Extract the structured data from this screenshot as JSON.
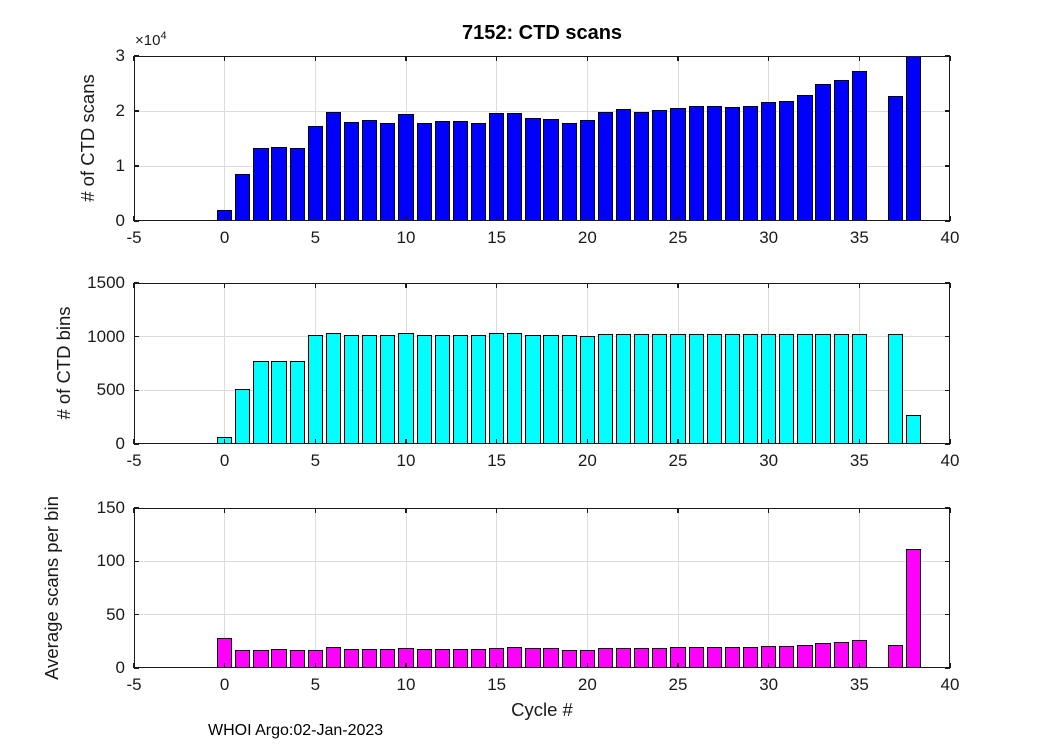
{
  "figure": {
    "footer": "WHOI Argo:02-Jan-2023"
  },
  "colors": {
    "background": "#ffffff",
    "axis": "#1a1a1a",
    "grid": "#dcdcdc",
    "tick_text": "#1a1a1a",
    "scans_bar": "#0000ff",
    "bins_bar": "#00ffff",
    "avg_bar": "#ff00ff",
    "bar_edge": "#000000"
  },
  "chart_data": [
    {
      "type": "bar",
      "title": "7152: CTD scans",
      "ylabel": "# of CTD scans",
      "y_scale_label": "×10",
      "y_scale_exponent": "4",
      "xlim": [
        -5,
        40
      ],
      "ylim": [
        0,
        30000
      ],
      "xticks": [
        -5,
        0,
        5,
        10,
        15,
        20,
        25,
        30,
        35,
        40
      ],
      "xtick_labels": [
        "-5",
        "0",
        "5",
        "10",
        "15",
        "20",
        "25",
        "30",
        "35",
        "40"
      ],
      "yticks": [
        0,
        10000,
        20000,
        30000
      ],
      "ytick_labels": [
        "0",
        "1",
        "2",
        "3"
      ],
      "grid": true,
      "bar_color": "#0000ff",
      "bar_width_units": 0.84,
      "x": [
        0,
        1,
        2,
        3,
        4,
        5,
        6,
        7,
        8,
        9,
        10,
        11,
        12,
        13,
        14,
        15,
        16,
        17,
        18,
        19,
        20,
        21,
        22,
        23,
        24,
        25,
        26,
        27,
        28,
        29,
        30,
        31,
        32,
        33,
        34,
        35,
        37,
        38
      ],
      "values": [
        2000,
        8500,
        13200,
        13400,
        13300,
        17300,
        19800,
        18000,
        18300,
        17800,
        19400,
        17800,
        18200,
        18100,
        17900,
        19700,
        19600,
        18700,
        18600,
        17800,
        18300,
        19800,
        20300,
        19900,
        20200,
        20500,
        21000,
        20900,
        20700,
        20900,
        21700,
        21800,
        22900,
        24900,
        25600,
        27200,
        22700,
        30000
      ]
    },
    {
      "type": "bar",
      "title": "",
      "ylabel": "# of CTD bins",
      "xlim": [
        -5,
        40
      ],
      "ylim": [
        0,
        1500
      ],
      "xticks": [
        -5,
        0,
        5,
        10,
        15,
        20,
        25,
        30,
        35,
        40
      ],
      "xtick_labels": [
        "-5",
        "0",
        "5",
        "10",
        "15",
        "20",
        "25",
        "30",
        "35",
        "40"
      ],
      "yticks": [
        0,
        500,
        1000,
        1500
      ],
      "ytick_labels": [
        "0",
        "500",
        "1000",
        "1500"
      ],
      "grid": true,
      "bar_color": "#00ffff",
      "bar_width_units": 0.84,
      "x": [
        0,
        1,
        2,
        3,
        4,
        5,
        6,
        7,
        8,
        9,
        10,
        11,
        12,
        13,
        14,
        15,
        16,
        17,
        18,
        19,
        20,
        21,
        22,
        23,
        24,
        25,
        26,
        27,
        28,
        29,
        30,
        31,
        32,
        33,
        34,
        35,
        37,
        38
      ],
      "values": [
        70,
        510,
        770,
        770,
        775,
        1020,
        1035,
        1020,
        1020,
        1020,
        1035,
        1020,
        1020,
        1020,
        1020,
        1035,
        1035,
        1020,
        1020,
        1020,
        1010,
        1025,
        1025,
        1025,
        1025,
        1025,
        1025,
        1025,
        1025,
        1025,
        1025,
        1025,
        1025,
        1025,
        1025,
        1025,
        1025,
        270
      ]
    },
    {
      "type": "bar",
      "title": "",
      "ylabel": "Average scans per bin",
      "xlabel": "Cycle #",
      "xlim": [
        -5,
        40
      ],
      "ylim": [
        0,
        150
      ],
      "xticks": [
        -5,
        0,
        5,
        10,
        15,
        20,
        25,
        30,
        35,
        40
      ],
      "xtick_labels": [
        "-5",
        "0",
        "5",
        "10",
        "15",
        "20",
        "25",
        "30",
        "35",
        "40"
      ],
      "yticks": [
        0,
        50,
        100,
        150
      ],
      "ytick_labels": [
        "0",
        "50",
        "100",
        "150"
      ],
      "grid": true,
      "bar_color": "#ff00ff",
      "bar_width_units": 0.84,
      "x": [
        0,
        1,
        2,
        3,
        4,
        5,
        6,
        7,
        8,
        9,
        10,
        11,
        12,
        13,
        14,
        15,
        16,
        17,
        18,
        19,
        20,
        21,
        22,
        23,
        24,
        25,
        26,
        27,
        28,
        29,
        30,
        31,
        32,
        33,
        34,
        35,
        37,
        38
      ],
      "values": [
        28,
        17,
        17,
        17.5,
        17,
        17,
        20,
        18,
        18,
        17.5,
        19,
        18,
        18,
        17.5,
        17.5,
        18.5,
        19.5,
        19,
        18.5,
        17,
        17,
        18.5,
        19,
        19,
        19,
        19.5,
        20,
        20,
        20,
        19.5,
        20.5,
        21,
        22,
        23.5,
        24.5,
        26.5,
        22,
        112
      ]
    }
  ]
}
